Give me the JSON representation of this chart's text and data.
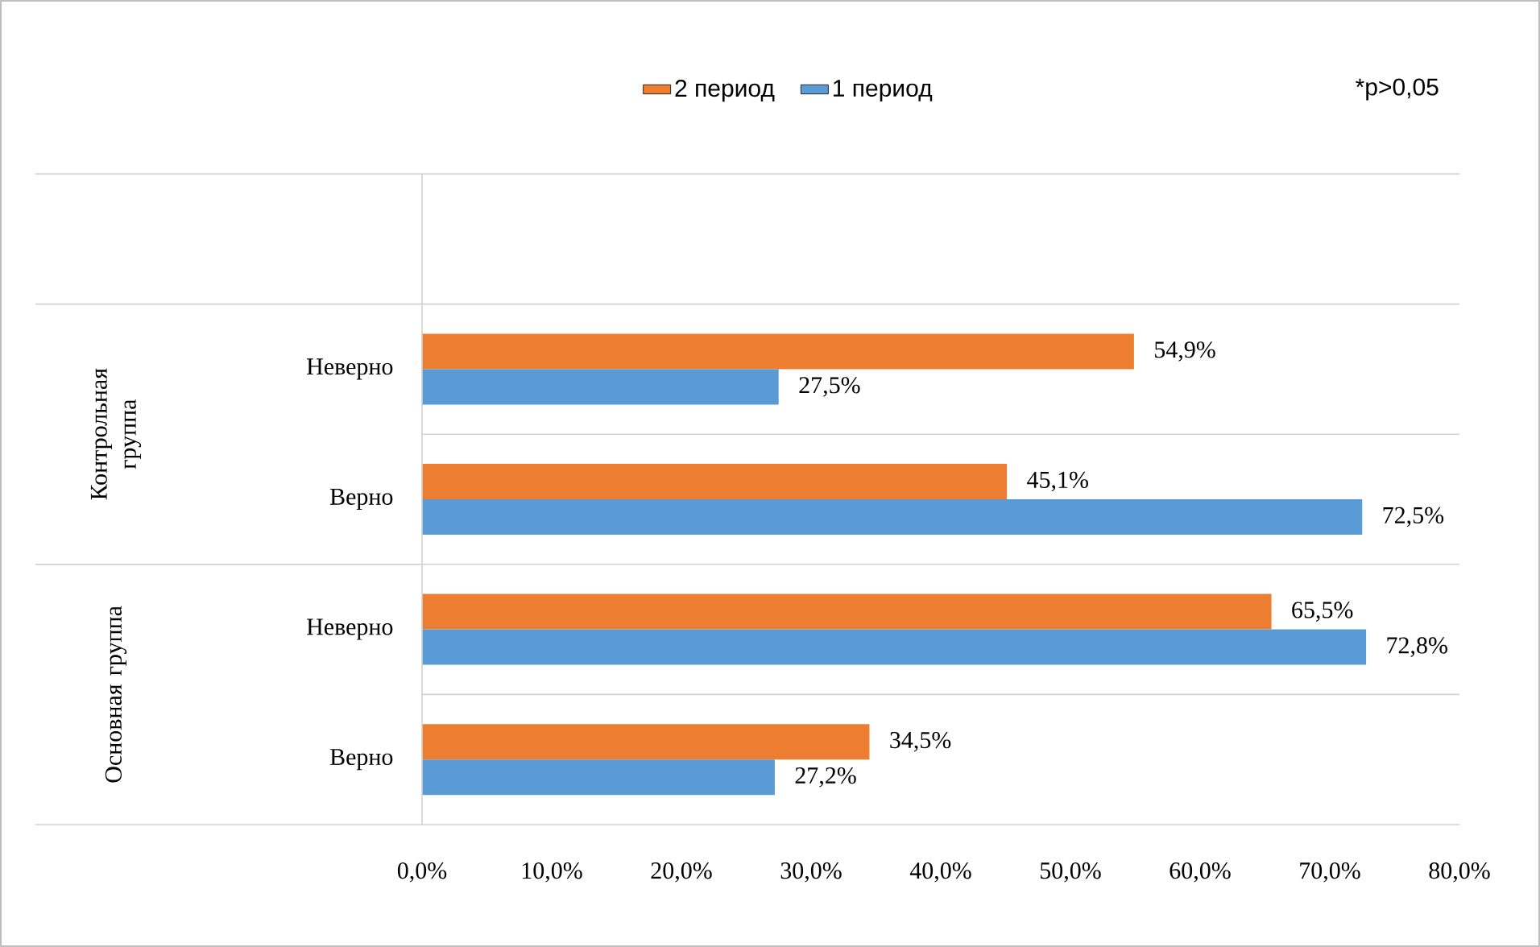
{
  "chart_data": {
    "type": "bar",
    "orientation": "horizontal",
    "categories": [
      null,
      "Неверно",
      "Верно",
      "Неверно",
      "Верно"
    ],
    "series": [
      {
        "name": "2 период",
        "color": "#ed7d31",
        "values": [
          null,
          54.9,
          45.1,
          65.5,
          34.5
        ],
        "value_labels": [
          null,
          "54,9%",
          "45,1%",
          "65,5%",
          "34,5%"
        ]
      },
      {
        "name": "1 период",
        "color": "#5b9bd5",
        "values": [
          null,
          27.5,
          72.5,
          72.8,
          27.2
        ],
        "value_labels": [
          null,
          "27,5%",
          "72,5%",
          "72,8%",
          "27,2%"
        ]
      }
    ],
    "xlim": [
      0,
      80
    ],
    "xticks": [
      {
        "value": 0,
        "label": "0,0%"
      },
      {
        "value": 10,
        "label": "10,0%"
      },
      {
        "value": 20,
        "label": "20,0%"
      },
      {
        "value": 30,
        "label": "30,0%"
      },
      {
        "value": 40,
        "label": "40,0%"
      },
      {
        "value": 50,
        "label": "50,0%"
      },
      {
        "value": 60,
        "label": "60,0%"
      },
      {
        "value": 70,
        "label": "70,0%"
      },
      {
        "value": 80,
        "label": "80,0%"
      }
    ],
    "annotations": [
      "*p>0,05",
      "Контрольная группа",
      "Основная группа"
    ],
    "grid": "y",
    "legend": "top"
  }
}
